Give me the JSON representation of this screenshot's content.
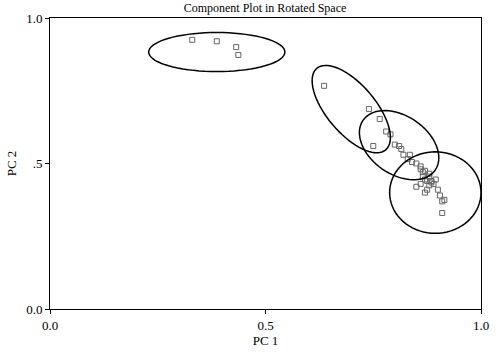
{
  "chart_data": {
    "type": "scatter",
    "title": "Component Plot in Rotated Space",
    "x_label": "PC 1",
    "y_label": "PC 2",
    "x": [
      0.33,
      0.387,
      0.432,
      0.437,
      0.636,
      0.74,
      0.765,
      0.75,
      0.78,
      0.79,
      0.8,
      0.81,
      0.815,
      0.82,
      0.83,
      0.835,
      0.84,
      0.85,
      0.86,
      0.86,
      0.865,
      0.87,
      0.865,
      0.87,
      0.875,
      0.88,
      0.885,
      0.88,
      0.875,
      0.86,
      0.85,
      0.89,
      0.895,
      0.87,
      0.9,
      0.905,
      0.91,
      0.915,
      0.91,
      0.885,
      0.88
    ],
    "y": [
      0.925,
      0.92,
      0.9,
      0.873,
      0.767,
      0.687,
      0.653,
      0.56,
      0.61,
      0.6,
      0.565,
      0.56,
      0.55,
      0.53,
      0.515,
      0.53,
      0.505,
      0.5,
      0.49,
      0.48,
      0.47,
      0.475,
      0.455,
      0.445,
      0.44,
      0.455,
      0.435,
      0.425,
      0.41,
      0.43,
      0.42,
      0.43,
      0.445,
      0.4,
      0.41,
      0.39,
      0.37,
      0.375,
      0.33,
      0.44,
      0.465
    ],
    "color": "#666666",
    "marker": "square-open",
    "xlim": [
      0,
      1
    ],
    "ylim": [
      0,
      1
    ],
    "xticks": [
      {
        "value": 0,
        "label": "0.0"
      },
      {
        "value": 0.5,
        "label": "0.5"
      },
      {
        "value": 1,
        "label": "1.0"
      }
    ],
    "yticks": [
      {
        "value": 0,
        "label": "0.0"
      },
      {
        "value": 0.5,
        "label": ".5"
      },
      {
        "value": 1,
        "label": "1.0"
      }
    ],
    "grid": false,
    "ellipses": [
      {
        "center": [
          0.387,
          0.883
        ],
        "axis1": [
          0.158,
          0
        ],
        "axis2": [
          0,
          0.067
        ]
      },
      {
        "center": [
          0.699,
          0.687
        ],
        "axis1": [
          0.08,
          -0.14
        ],
        "axis2": [
          -0.043,
          -0.054
        ]
      },
      {
        "center": [
          0.81,
          0.563
        ],
        "axis1": [
          0.0835,
          -0.086
        ],
        "axis2": [
          -0.039,
          -0.082
        ]
      },
      {
        "center": [
          0.894,
          0.4
        ],
        "axis1": [
          0.106,
          0
        ],
        "axis2": [
          0,
          0.14
        ]
      }
    ]
  }
}
